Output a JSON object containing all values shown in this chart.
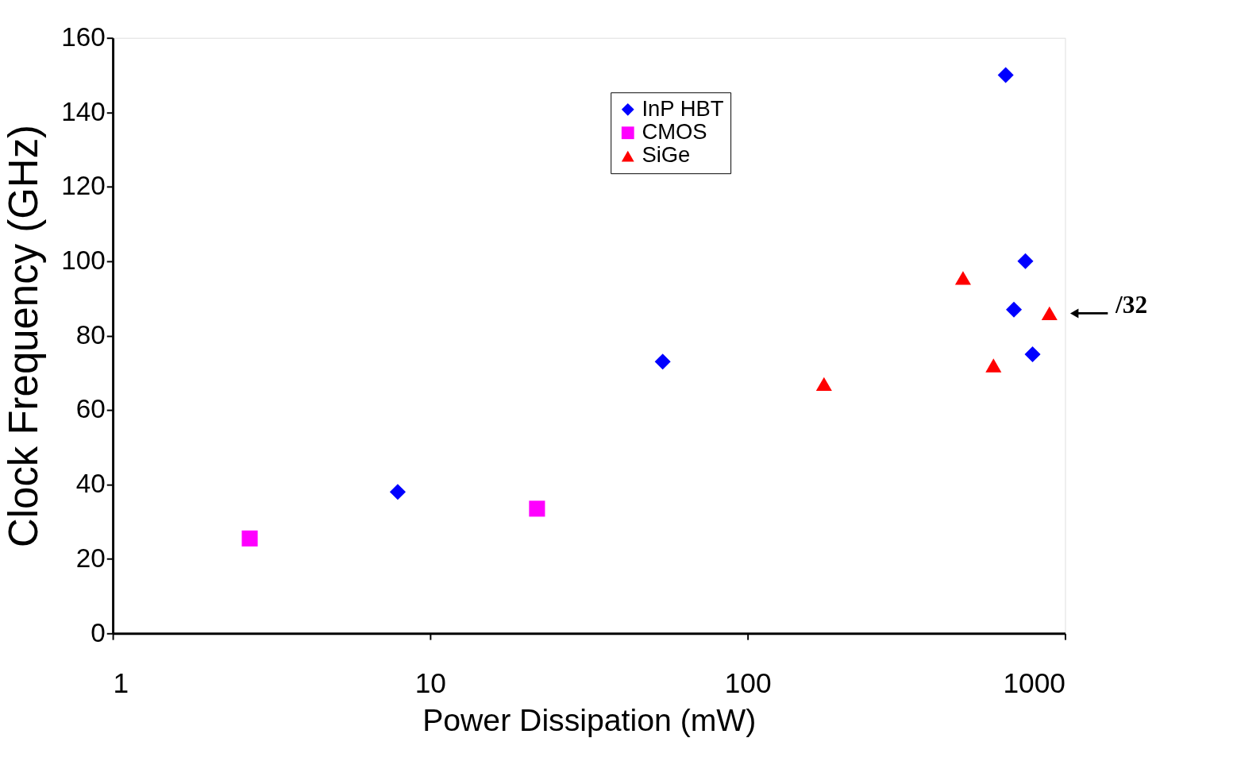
{
  "chart_data": {
    "type": "scatter",
    "xlabel": "Power Dissipation (mW)",
    "ylabel": "Clock Frequency (GHz)",
    "log": "x",
    "xlim": [
      1,
      1000
    ],
    "xticks": [
      1,
      10,
      100,
      1000
    ],
    "ylim": [
      0,
      160
    ],
    "yticks": [
      0,
      20,
      40,
      60,
      80,
      100,
      120,
      140,
      160
    ],
    "grid": false,
    "legend": "top",
    "series": [
      {
        "name": "InP HBT",
        "color": "#0000ff",
        "marker": "diamond",
        "x": [
          7.9,
          54,
          650,
          750,
          690,
          790
        ],
        "values": [
          38,
          73,
          150,
          100,
          87,
          75
        ]
      },
      {
        "name": "CMOS",
        "color": "#ff00ff",
        "marker": "square",
        "x": [
          2.7,
          21.7
        ],
        "values": [
          25.5,
          33.5
        ]
      },
      {
        "name": "SiGe",
        "color": "#ff0000",
        "marker": "triangle",
        "x": [
          174,
          477,
          595,
          893
        ],
        "values": [
          67,
          95.5,
          72,
          86
        ]
      }
    ],
    "annotations": [
      {
        "text": "/32",
        "x": 893,
        "y": 86
      }
    ]
  }
}
